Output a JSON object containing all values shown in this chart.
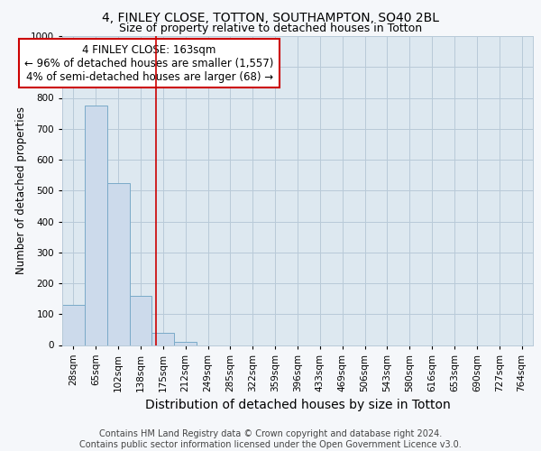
{
  "title_line1": "4, FINLEY CLOSE, TOTTON, SOUTHAMPTON, SO40 2BL",
  "title_line2": "Size of property relative to detached houses in Totton",
  "xlabel": "Distribution of detached houses by size in Totton",
  "ylabel": "Number of detached properties",
  "footer": "Contains HM Land Registry data © Crown copyright and database right 2024.\nContains public sector information licensed under the Open Government Licence v3.0.",
  "categories": [
    "28sqm",
    "65sqm",
    "102sqm",
    "138sqm",
    "175sqm",
    "212sqm",
    "249sqm",
    "285sqm",
    "322sqm",
    "359sqm",
    "396sqm",
    "433sqm",
    "469sqm",
    "506sqm",
    "543sqm",
    "580sqm",
    "616sqm",
    "653sqm",
    "690sqm",
    "727sqm",
    "764sqm"
  ],
  "bar_values": [
    130,
    775,
    525,
    160,
    40,
    10,
    0,
    0,
    0,
    0,
    0,
    0,
    0,
    0,
    0,
    0,
    0,
    0,
    0,
    0,
    0
  ],
  "bar_color": "#ccdaeb",
  "bar_edge_color": "#7aaac8",
  "bar_linewidth": 0.7,
  "property_line_x": 3.68,
  "property_line_color": "#cc0000",
  "annotation_text": "4 FINLEY CLOSE: 163sqm\n← 96% of detached houses are smaller (1,557)\n4% of semi-detached houses are larger (68) →",
  "annotation_box_color": "#cc0000",
  "ylim": [
    0,
    1000
  ],
  "yticks": [
    0,
    100,
    200,
    300,
    400,
    500,
    600,
    700,
    800,
    900,
    1000
  ],
  "background_color": "#f5f7fa",
  "plot_bg_color": "#dde8f0",
  "grid_color": "#b8cad8",
  "title1_fontsize": 10,
  "title2_fontsize": 9,
  "xlabel_fontsize": 10,
  "ylabel_fontsize": 8.5,
  "tick_fontsize": 7.5,
  "footer_fontsize": 7,
  "annot_fontsize": 8.5
}
